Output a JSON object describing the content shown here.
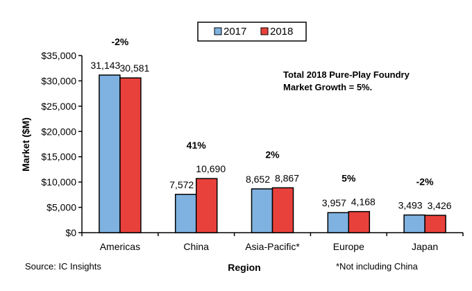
{
  "chart_data": {
    "type": "bar",
    "title": "",
    "xlabel": "Region",
    "ylabel": "Market ($M)",
    "ylim": [
      0,
      35000
    ],
    "yticks": [
      0,
      5000,
      10000,
      15000,
      20000,
      25000,
      30000,
      35000
    ],
    "ytick_labels": [
      "$0",
      "$5,000",
      "$10,000",
      "$15,000",
      "$20,000",
      "$25,000",
      "$30,000",
      "$35,000"
    ],
    "categories": [
      "Americas",
      "China",
      "Asia-Pacific*",
      "Europe",
      "Japan"
    ],
    "series": [
      {
        "name": "2017",
        "color": "#7FB2E0",
        "values": [
          31143,
          7572,
          8652,
          3957,
          3493
        ],
        "labels": [
          "31,143",
          "7,572",
          "8,652",
          "3,957",
          "3,493"
        ]
      },
      {
        "name": "2018",
        "color": "#E8413C",
        "values": [
          30581,
          10690,
          8867,
          4168,
          3426
        ],
        "labels": [
          "30,581",
          "10,690",
          "8,867",
          "4,168",
          "3,426"
        ]
      }
    ],
    "growth_labels": [
      "-2%",
      "41%",
      "2%",
      "5%",
      "-2%"
    ],
    "legend": {
      "placement": "top-center",
      "entries": [
        "2017",
        "2018"
      ]
    },
    "annotation": [
      "Total 2018 Pure-Play Foundry",
      "Market Growth = 5%."
    ],
    "source": "Source: IC Insights",
    "footnote": "*Not including China",
    "grid": false
  }
}
